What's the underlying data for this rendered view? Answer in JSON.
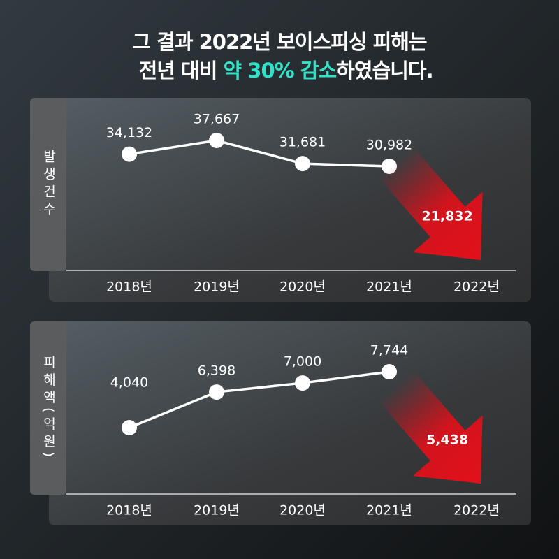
{
  "title_lines": [
    "그 결과 2022년 보이스피싱 피해는",
    [
      "전년 대비 ",
      "약 30% 감소",
      "하였습니다."
    ]
  ],
  "chart_data": [
    {
      "type": "line",
      "y_label": "발생건수",
      "categories": [
        "2018년",
        "2019년",
        "2020년",
        "2021년",
        "2022년"
      ],
      "values": [
        34132,
        37667,
        31681,
        30982,
        21832
      ],
      "value_labels": [
        "34,132",
        "37,667",
        "31,681",
        "30,982",
        "21,832"
      ],
      "color": "#ffffff",
      "highlight_color": "#e3101a"
    },
    {
      "type": "line",
      "y_label": "피해액(억원)",
      "categories": [
        "2018년",
        "2019년",
        "2020년",
        "2021년",
        "2022년"
      ],
      "values": [
        4040,
        6398,
        7000,
        7744,
        5438
      ],
      "value_labels": [
        "4,040",
        "6,398",
        "7,000",
        "7,744",
        "5,438"
      ],
      "color": "#ffffff",
      "highlight_color": "#e3101a"
    }
  ]
}
